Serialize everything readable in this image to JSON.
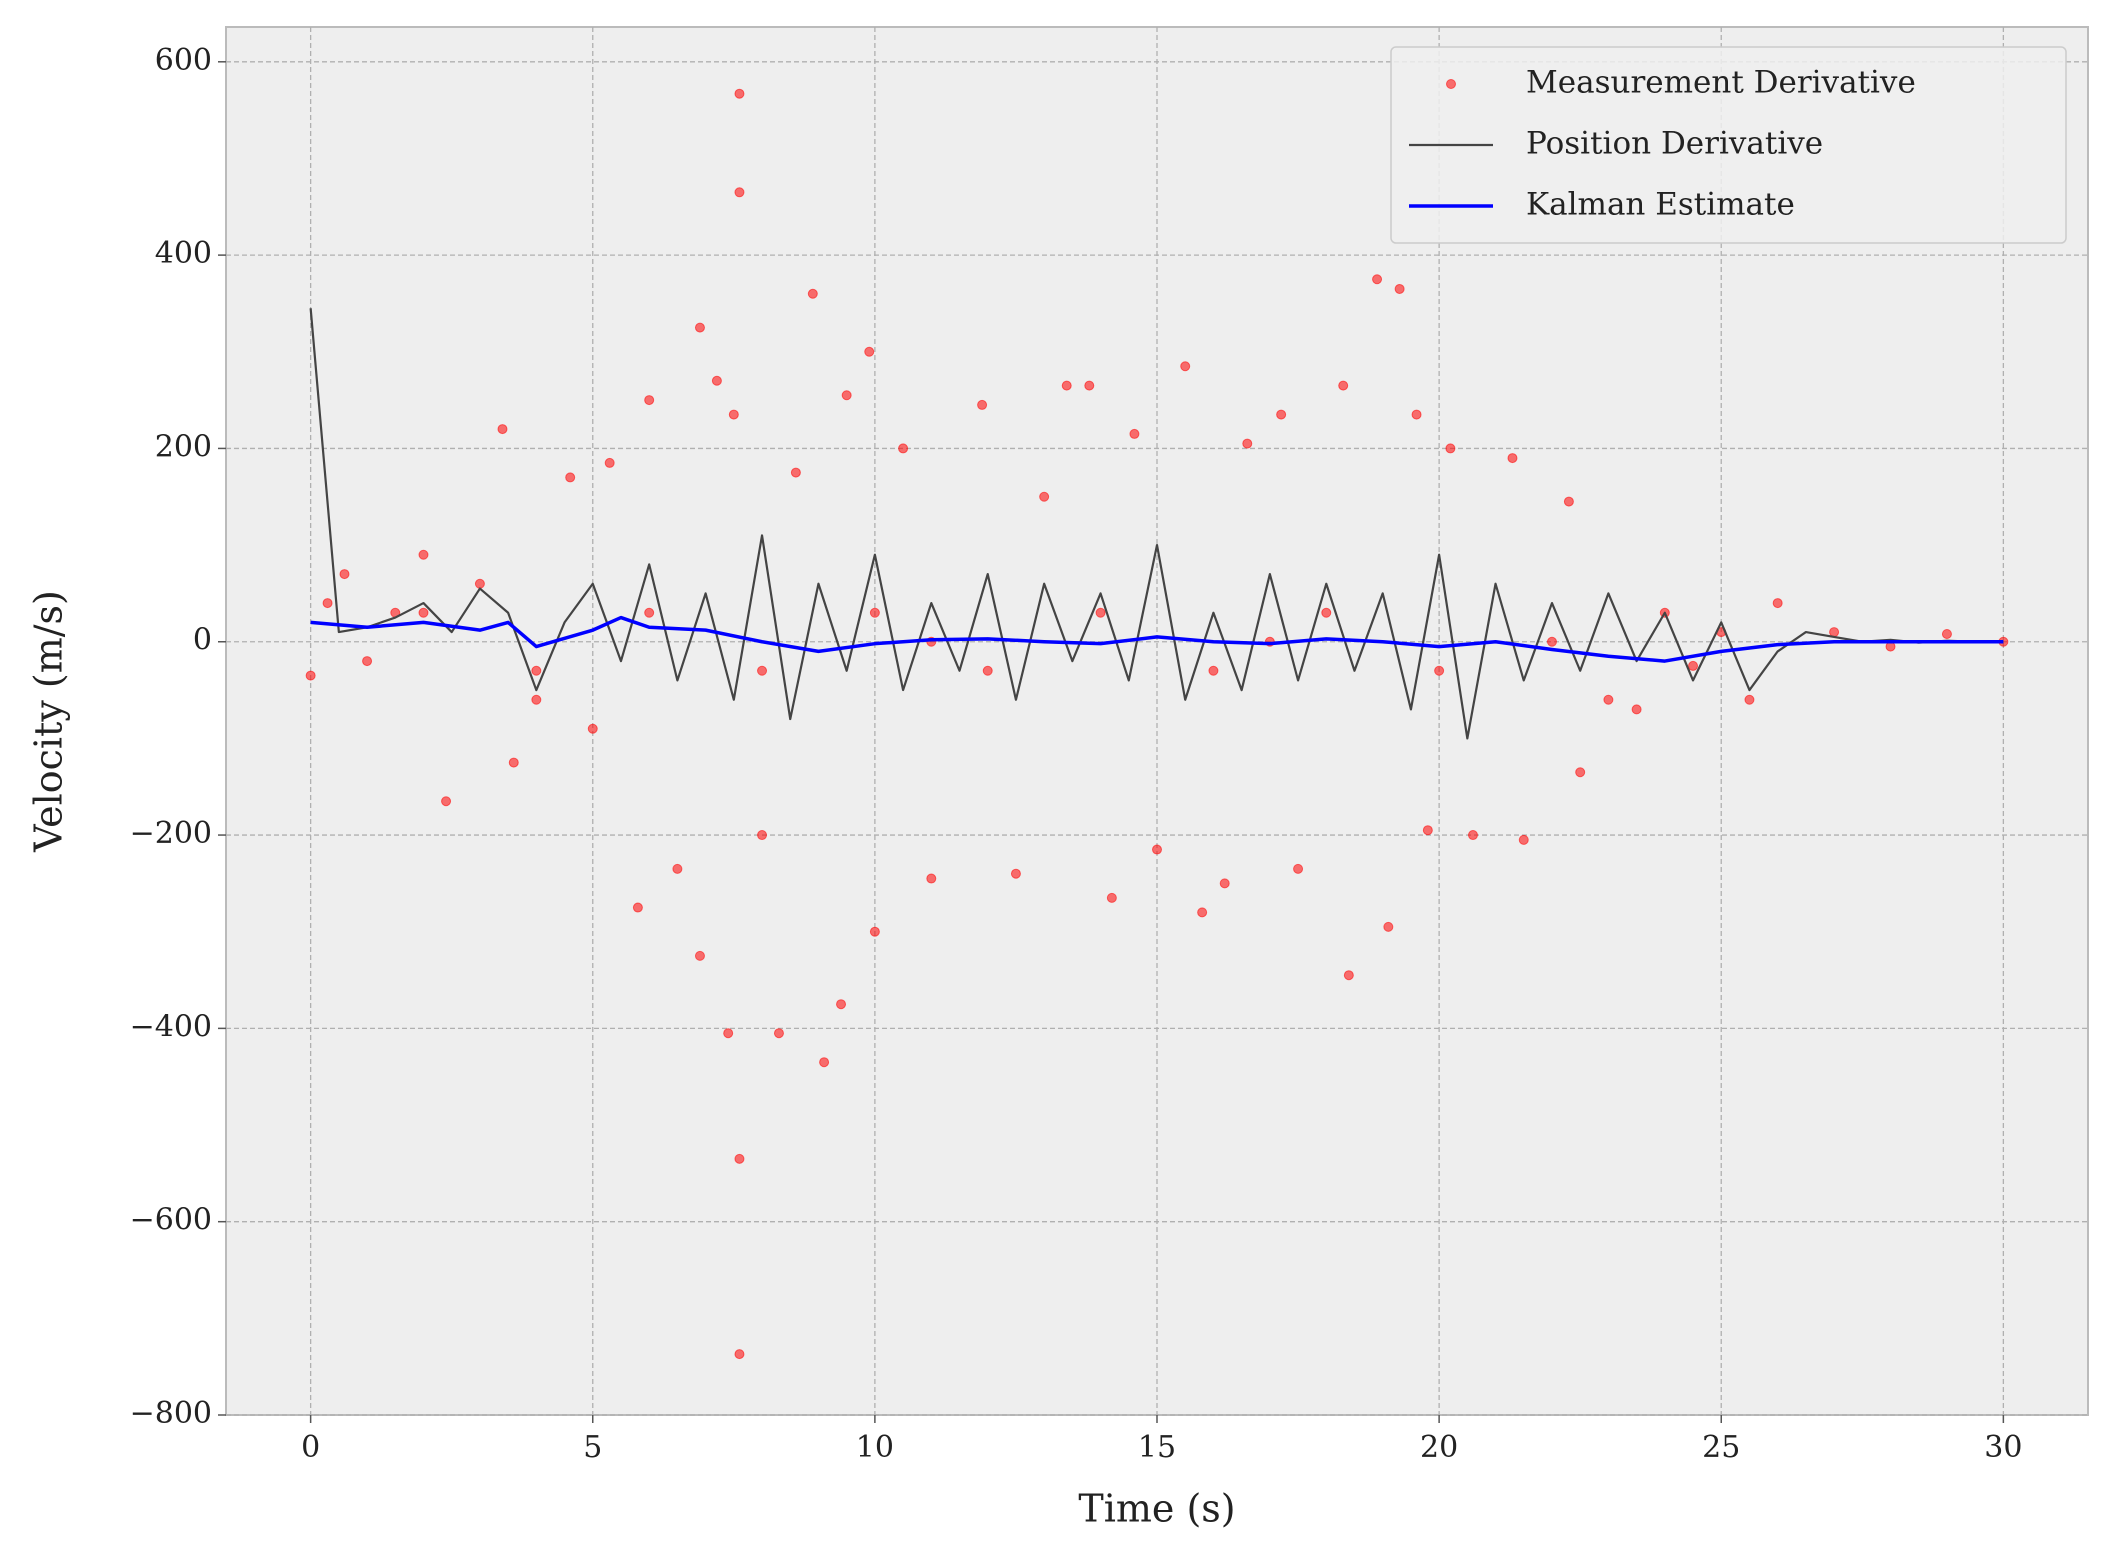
{
  "chart_data": {
    "type": "line",
    "xlabel": "Time (s)",
    "ylabel": "Velocity (m/s)",
    "xlim": [
      -1.5,
      31.5
    ],
    "ylim": [
      -800,
      636
    ],
    "xticks": [
      0,
      5,
      10,
      15,
      20,
      25,
      30
    ],
    "yticks": [
      {
        "value": -800,
        "label": "−800"
      },
      {
        "value": -600,
        "label": "−600"
      },
      {
        "value": -400,
        "label": "−400"
      },
      {
        "value": -200,
        "label": "−200"
      },
      0,
      200,
      400,
      600
    ],
    "grid": true,
    "legend": "upper right",
    "series": [
      {
        "name": "Measurement Derivative",
        "type": "scatter",
        "color": "#ff0000",
        "x": [
          0,
          0.3,
          0.6,
          1,
          1.5,
          2,
          2.4,
          3,
          3.4,
          3.6,
          4,
          4.6,
          5,
          5.3,
          5.8,
          6,
          6.5,
          6.9,
          6.9,
          7.2,
          7.4,
          7.5,
          7.6,
          7.6,
          7.6,
          7.6,
          8,
          8.3,
          8.6,
          8.9,
          9.1,
          9.4,
          9.5,
          9.9,
          10,
          10.5,
          11,
          11.9,
          12.5,
          13,
          13.4,
          13.8,
          14.2,
          14.6,
          15,
          15.5,
          15.8,
          16.2,
          16.6,
          17.2,
          17.5,
          18.3,
          18.4,
          18.9,
          19.1,
          19.3,
          19.6,
          19.8,
          20.2,
          20.6,
          21.3,
          21.5,
          22.3,
          22.5,
          23,
          23.5,
          24,
          24.5,
          25,
          25.5,
          26,
          27,
          28,
          29,
          30,
          2,
          4,
          6,
          8,
          10,
          12,
          14,
          16,
          18,
          20,
          22,
          11,
          17
        ],
        "values": [
          -35,
          40,
          70,
          -20,
          30,
          90,
          -165,
          60,
          220,
          -125,
          -60,
          170,
          -90,
          185,
          -275,
          250,
          -235,
          325,
          -325,
          270,
          -405,
          235,
          567,
          465,
          -535,
          -737,
          -200,
          -405,
          175,
          360,
          -435,
          -375,
          255,
          300,
          -300,
          200,
          -245,
          245,
          -240,
          150,
          265,
          265,
          -265,
          215,
          -215,
          285,
          -280,
          -250,
          205,
          235,
          -235,
          265,
          -345,
          375,
          -295,
          365,
          235,
          -195,
          200,
          -200,
          190,
          -205,
          145,
          -135,
          -60,
          -70,
          30,
          -25,
          10,
          -60,
          40,
          10,
          -5,
          8,
          0,
          30,
          -30,
          30,
          -30,
          30,
          -30,
          30,
          -30,
          30,
          -30,
          0,
          0,
          0
        ]
      },
      {
        "name": "Position Derivative",
        "type": "line",
        "color": "#444444",
        "x": [
          0,
          0.5,
          1,
          1.5,
          2,
          2.5,
          3,
          3.5,
          4,
          4.5,
          5,
          5.5,
          6,
          6.5,
          7,
          7.5,
          8,
          8.5,
          9,
          9.5,
          10,
          10.5,
          11,
          11.5,
          12,
          12.5,
          13,
          13.5,
          14,
          14.5,
          15,
          15.5,
          16,
          16.5,
          17,
          17.5,
          18,
          18.5,
          19,
          19.5,
          20,
          20.5,
          21,
          21.5,
          22,
          22.5,
          23,
          23.5,
          24,
          24.5,
          25,
          25.5,
          26,
          26.5,
          27,
          27.5,
          28,
          28.5,
          29,
          29.5,
          30
        ],
        "values": [
          345,
          10,
          15,
          25,
          40,
          10,
          55,
          30,
          -50,
          20,
          60,
          -20,
          80,
          -40,
          50,
          -60,
          110,
          -80,
          60,
          -30,
          90,
          -50,
          40,
          -30,
          70,
          -60,
          60,
          -20,
          50,
          -40,
          100,
          -60,
          30,
          -50,
          70,
          -40,
          60,
          -30,
          50,
          -70,
          90,
          -100,
          60,
          -40,
          40,
          -30,
          50,
          -20,
          30,
          -40,
          20,
          -50,
          -10,
          10,
          5,
          0,
          2,
          -1,
          1,
          0,
          0
        ]
      },
      {
        "name": "Kalman Estimate",
        "type": "line",
        "color": "#0000ff",
        "x": [
          0,
          1,
          2,
          3,
          3.5,
          4,
          5,
          5.5,
          6,
          7,
          8,
          9,
          10,
          11,
          12,
          13,
          14,
          15,
          16,
          17,
          18,
          19,
          20,
          21,
          22,
          23,
          24,
          25,
          26,
          27,
          28,
          29,
          30
        ],
        "values": [
          20,
          15,
          20,
          12,
          20,
          -5,
          12,
          25,
          15,
          12,
          0,
          -10,
          -2,
          2,
          3,
          0,
          -2,
          5,
          0,
          -2,
          3,
          0,
          -5,
          0,
          -8,
          -15,
          -20,
          -10,
          -3,
          0,
          0,
          0,
          0
        ]
      }
    ]
  }
}
